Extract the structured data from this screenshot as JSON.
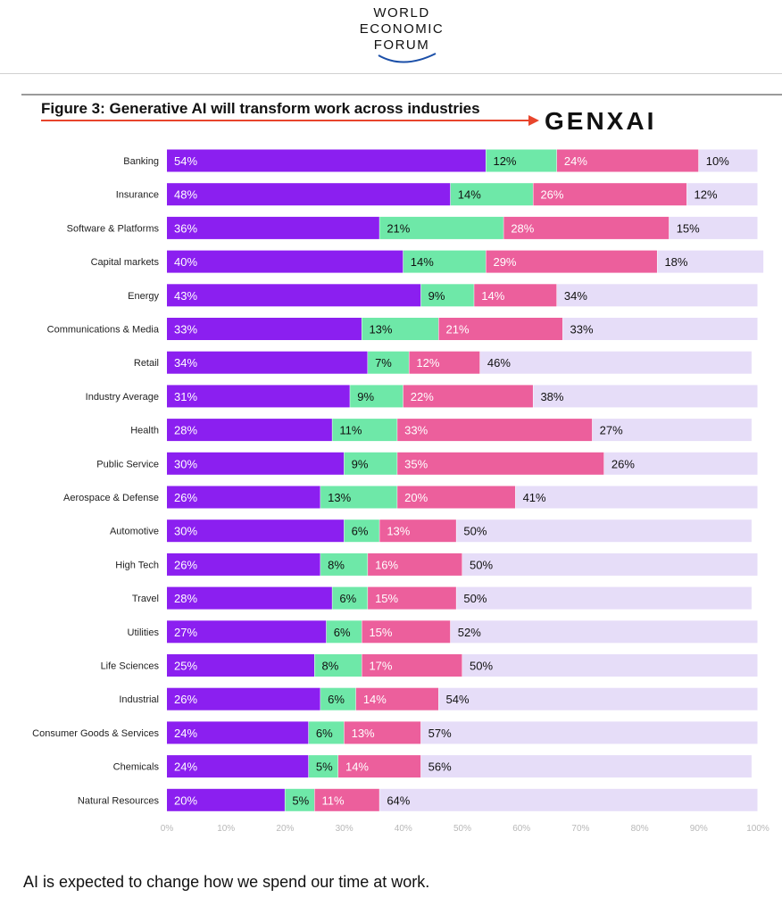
{
  "header": {
    "logo_lines": [
      "WORLD",
      "ECONOMIC",
      "FORUM"
    ]
  },
  "figure": {
    "title": "Figure 3: Generative AI will transform work across industries",
    "brand": "GENXAI"
  },
  "caption": "AI is expected to change how we spend our time at work.",
  "colors": {
    "s1": "#8b1ff0",
    "s2": "#6ee8a8",
    "s3": "#ec5f9c",
    "s4": "#e6ddf8",
    "arrow": "#e8452c"
  },
  "chart_data": {
    "type": "bar",
    "orientation": "horizontal",
    "stacked": true,
    "categories": [
      "Banking",
      "Insurance",
      "Software & Platforms",
      "Capital markets",
      "Energy",
      "Communications & Media",
      "Retail",
      "Industry Average",
      "Health",
      "Public Service",
      "Aerospace & Defense",
      "Automotive",
      "High Tech",
      "Travel",
      "Utilities",
      "Life Sciences",
      "Industrial",
      "Consumer Goods & Services",
      "Chemicals",
      "Natural Resources"
    ],
    "series": [
      {
        "values": [
          54,
          48,
          36,
          40,
          43,
          33,
          34,
          31,
          28,
          30,
          26,
          30,
          26,
          28,
          27,
          25,
          26,
          24,
          24,
          20
        ]
      },
      {
        "values": [
          12,
          14,
          21,
          14,
          9,
          13,
          7,
          9,
          11,
          9,
          13,
          6,
          8,
          6,
          6,
          8,
          6,
          6,
          5,
          5
        ]
      },
      {
        "values": [
          24,
          26,
          28,
          29,
          14,
          21,
          12,
          22,
          33,
          35,
          20,
          13,
          16,
          15,
          15,
          17,
          14,
          13,
          14,
          11
        ]
      },
      {
        "values": [
          10,
          12,
          15,
          18,
          34,
          33,
          46,
          38,
          27,
          26,
          41,
          50,
          50,
          50,
          52,
          50,
          54,
          57,
          56,
          64
        ]
      }
    ],
    "value_suffix": "%",
    "xticks": [
      "0%",
      "10%",
      "20%",
      "30%",
      "40%",
      "50%",
      "60%",
      "70%",
      "80%",
      "90%",
      "100%"
    ],
    "xlim": [
      0,
      100
    ],
    "grid": false,
    "legend": "none"
  }
}
